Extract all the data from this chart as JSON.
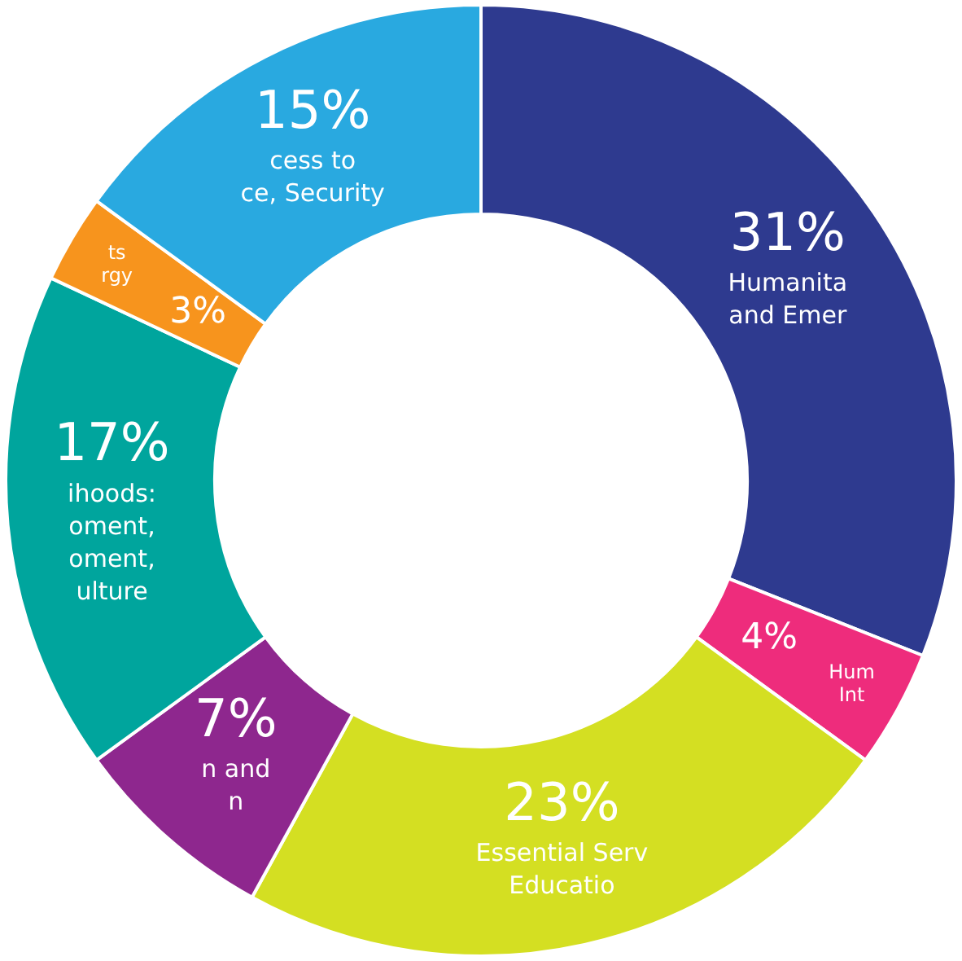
{
  "chart_data": {
    "type": "donut",
    "categories": [
      "Humanita\nand Emer",
      "Hum\nInt",
      "Essential Serv\nEducatio",
      "n and\nn",
      "ihoods:\noment,\noment,\nulture",
      "ts\nrgy",
      "cess to\nce, Security"
    ],
    "values": [
      31,
      4,
      23,
      7,
      17,
      3,
      15
    ],
    "value_labels": [
      "31%",
      "4%",
      "23%",
      "7%",
      "17%",
      "3%",
      "15%"
    ],
    "colors": [
      "#2e3a8f",
      "#ee2c7c",
      "#d4df22",
      "#8e278e",
      "#00a59d",
      "#f7941d",
      "#29a9e0"
    ],
    "legend": false
  }
}
